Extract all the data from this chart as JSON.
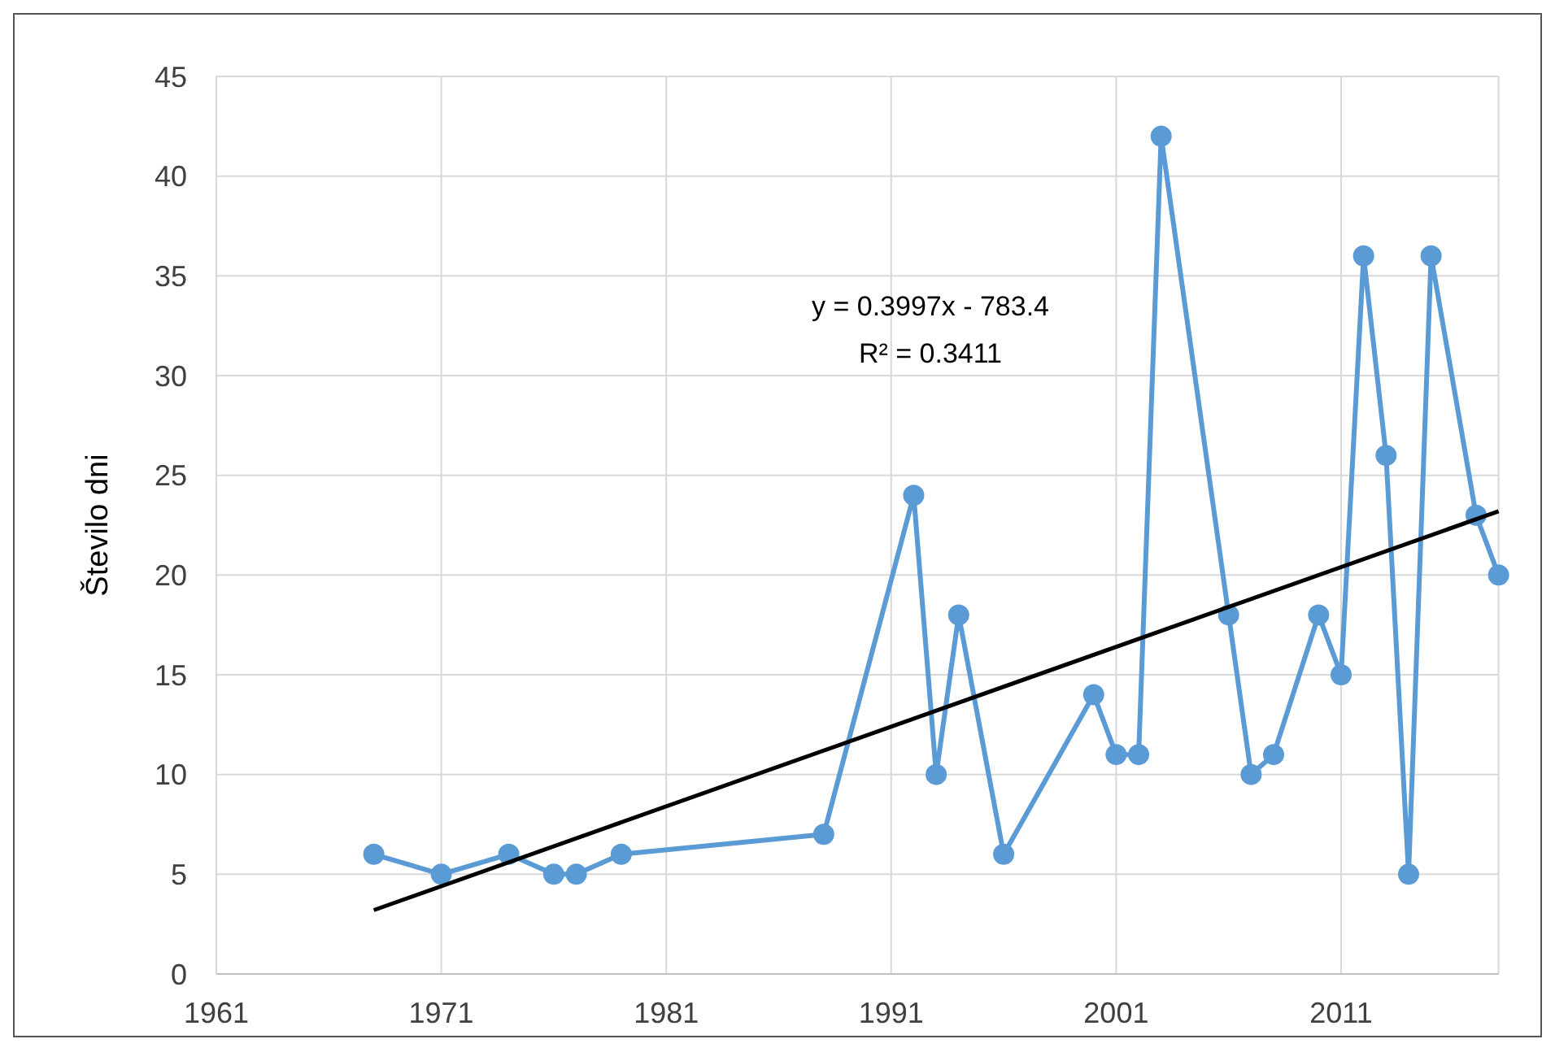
{
  "chart_data": {
    "type": "line",
    "ylabel": "Število dni",
    "x": [
      1968,
      1971,
      1974,
      1976,
      1977,
      1979,
      1988,
      1992,
      1993,
      1994,
      1996,
      2000,
      2001,
      2002,
      2003,
      2006,
      2007,
      2008,
      2010,
      2011,
      2012,
      2013,
      2014,
      2015,
      2017,
      2018
    ],
    "series": [
      {
        "color": "#5b9bd5",
        "values": [
          6,
          5,
          6,
          5,
          5,
          6,
          7,
          24,
          10,
          18,
          6,
          14,
          11,
          11,
          42,
          18,
          10,
          11,
          18,
          15,
          36,
          26,
          5,
          36,
          23,
          20
        ],
        "marker": "circle"
      },
      {
        "type": "line",
        "color": "#000000",
        "x": [
          1968,
          2018
        ],
        "values": [
          3.2,
          23.2
        ],
        "marker": "none"
      }
    ],
    "annotations": [
      "y = 0.3997x - 783.4",
      "R² = 0.3411"
    ],
    "xlim": [
      1961,
      2018
    ],
    "xticks": [
      1961,
      1971,
      1981,
      1991,
      2001,
      2011
    ],
    "ylim": [
      0,
      45
    ],
    "yticks": [
      0,
      5,
      10,
      15,
      20,
      25,
      30,
      35,
      40,
      45
    ],
    "grid": true
  }
}
